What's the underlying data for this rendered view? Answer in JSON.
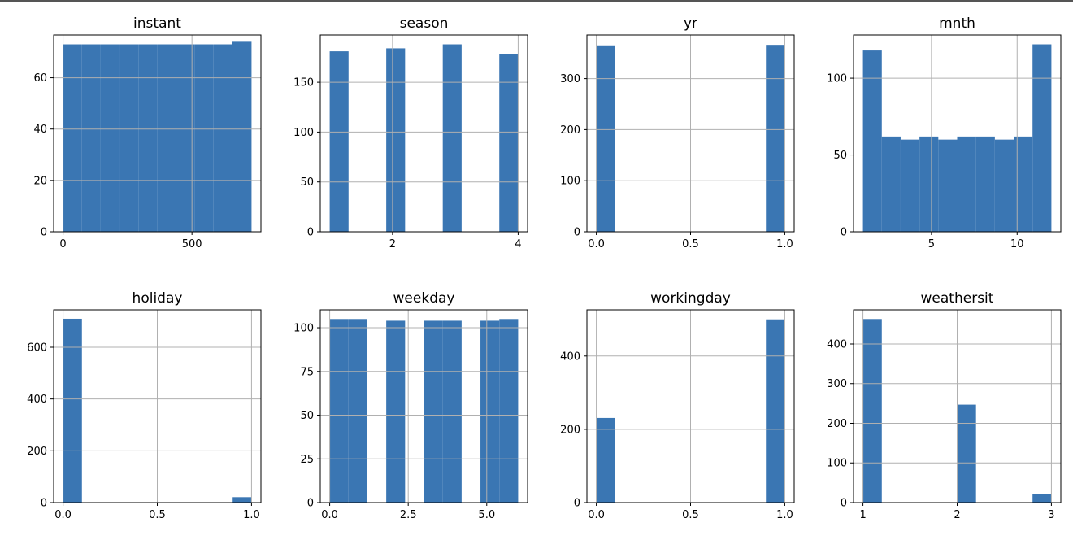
{
  "style": {
    "bar_color": "#3a76b3",
    "grid_color": "#b0b0b0",
    "axis_color": "#000000"
  },
  "chart_data": [
    {
      "type": "bar",
      "title": "instant",
      "xlim": [
        -36.5,
        767.5
      ],
      "ylim": [
        0,
        76.65
      ],
      "xticks": [
        0,
        500
      ],
      "yticks": [
        0,
        20,
        40,
        60
      ],
      "grid": true,
      "bins": [
        {
          "x0": 1,
          "x1": 73,
          "value": 73
        },
        {
          "x0": 73,
          "x1": 146,
          "value": 73
        },
        {
          "x0": 146,
          "x1": 219,
          "value": 73
        },
        {
          "x0": 219,
          "x1": 292,
          "value": 73
        },
        {
          "x0": 292,
          "x1": 365,
          "value": 73
        },
        {
          "x0": 365,
          "x1": 438,
          "value": 73
        },
        {
          "x0": 438,
          "x1": 511,
          "value": 73
        },
        {
          "x0": 511,
          "x1": 584,
          "value": 73
        },
        {
          "x0": 584,
          "x1": 657,
          "value": 73
        },
        {
          "x0": 657,
          "x1": 731,
          "value": 74
        }
      ]
    },
    {
      "type": "bar",
      "title": "season",
      "xlim": [
        0.85,
        4.15
      ],
      "ylim": [
        0,
        197.4
      ],
      "xticks": [
        2,
        4
      ],
      "yticks": [
        0,
        50,
        100,
        150
      ],
      "grid": true,
      "bins": [
        {
          "x0": 1.0,
          "x1": 1.3,
          "value": 181
        },
        {
          "x0": 1.3,
          "x1": 1.6,
          "value": 0
        },
        {
          "x0": 1.6,
          "x1": 1.9,
          "value": 0
        },
        {
          "x0": 1.9,
          "x1": 2.2,
          "value": 184
        },
        {
          "x0": 2.2,
          "x1": 2.5,
          "value": 0
        },
        {
          "x0": 2.5,
          "x1": 2.8,
          "value": 0
        },
        {
          "x0": 2.8,
          "x1": 3.1,
          "value": 188
        },
        {
          "x0": 3.1,
          "x1": 3.4,
          "value": 0
        },
        {
          "x0": 3.4,
          "x1": 3.7,
          "value": 0
        },
        {
          "x0": 3.7,
          "x1": 4.0,
          "value": 178
        }
      ]
    },
    {
      "type": "bar",
      "title": "yr",
      "xlim": [
        -0.05,
        1.05
      ],
      "ylim": [
        0,
        385.35
      ],
      "xticks": [
        0.0,
        0.5,
        1.0
      ],
      "yticks": [
        0,
        100,
        200,
        300
      ],
      "grid": true,
      "bins": [
        {
          "x0": 0.0,
          "x1": 0.1,
          "value": 365
        },
        {
          "x0": 0.1,
          "x1": 0.2,
          "value": 0
        },
        {
          "x0": 0.2,
          "x1": 0.3,
          "value": 0
        },
        {
          "x0": 0.3,
          "x1": 0.4,
          "value": 0
        },
        {
          "x0": 0.4,
          "x1": 0.5,
          "value": 0
        },
        {
          "x0": 0.5,
          "x1": 0.6,
          "value": 0
        },
        {
          "x0": 0.6,
          "x1": 0.7,
          "value": 0
        },
        {
          "x0": 0.7,
          "x1": 0.8,
          "value": 0
        },
        {
          "x0": 0.8,
          "x1": 0.9,
          "value": 0
        },
        {
          "x0": 0.9,
          "x1": 1.0,
          "value": 366
        }
      ]
    },
    {
      "type": "bar",
      "title": "mnth",
      "xlim": [
        0.45,
        12.55
      ],
      "ylim": [
        0,
        128.1
      ],
      "xticks": [
        5,
        10
      ],
      "yticks": [
        0,
        50,
        100
      ],
      "grid": true,
      "bins": [
        {
          "x0": 1.0,
          "x1": 2.1,
          "value": 118
        },
        {
          "x0": 2.1,
          "x1": 3.2,
          "value": 62
        },
        {
          "x0": 3.2,
          "x1": 4.3,
          "value": 60
        },
        {
          "x0": 4.3,
          "x1": 5.4,
          "value": 62
        },
        {
          "x0": 5.4,
          "x1": 6.5,
          "value": 60
        },
        {
          "x0": 6.5,
          "x1": 7.6,
          "value": 62
        },
        {
          "x0": 7.6,
          "x1": 8.7,
          "value": 62
        },
        {
          "x0": 8.7,
          "x1": 9.8,
          "value": 60
        },
        {
          "x0": 9.8,
          "x1": 10.9,
          "value": 62
        },
        {
          "x0": 10.9,
          "x1": 12.0,
          "value": 122
        }
      ]
    },
    {
      "type": "bar",
      "title": "holiday",
      "xlim": [
        -0.05,
        1.05
      ],
      "ylim": [
        0,
        744.45
      ],
      "xticks": [
        0.0,
        0.5,
        1.0
      ],
      "yticks": [
        0,
        200,
        400,
        600
      ],
      "grid": true,
      "bins": [
        {
          "x0": 0.0,
          "x1": 0.1,
          "value": 710
        },
        {
          "x0": 0.1,
          "x1": 0.2,
          "value": 0
        },
        {
          "x0": 0.2,
          "x1": 0.3,
          "value": 0
        },
        {
          "x0": 0.3,
          "x1": 0.4,
          "value": 0
        },
        {
          "x0": 0.4,
          "x1": 0.5,
          "value": 0
        },
        {
          "x0": 0.5,
          "x1": 0.6,
          "value": 0
        },
        {
          "x0": 0.6,
          "x1": 0.7,
          "value": 0
        },
        {
          "x0": 0.7,
          "x1": 0.8,
          "value": 0
        },
        {
          "x0": 0.8,
          "x1": 0.9,
          "value": 0
        },
        {
          "x0": 0.9,
          "x1": 1.0,
          "value": 21
        }
      ]
    },
    {
      "type": "bar",
      "title": "weekday",
      "xlim": [
        -0.3,
        6.3
      ],
      "ylim": [
        0,
        110.25
      ],
      "xticks": [
        0.0,
        2.5,
        5.0
      ],
      "yticks": [
        0,
        25,
        50,
        75,
        100
      ],
      "grid": true,
      "bins": [
        {
          "x0": 0.0,
          "x1": 0.6,
          "value": 105
        },
        {
          "x0": 0.6,
          "x1": 1.2,
          "value": 105
        },
        {
          "x0": 1.2,
          "x1": 1.8,
          "value": 0
        },
        {
          "x0": 1.8,
          "x1": 2.4,
          "value": 104
        },
        {
          "x0": 2.4,
          "x1": 3.0,
          "value": 0
        },
        {
          "x0": 3.0,
          "x1": 3.6,
          "value": 104
        },
        {
          "x0": 3.6,
          "x1": 4.2,
          "value": 104
        },
        {
          "x0": 4.2,
          "x1": 4.8,
          "value": 0
        },
        {
          "x0": 4.8,
          "x1": 5.4,
          "value": 104
        },
        {
          "x0": 5.4,
          "x1": 6.0,
          "value": 105
        }
      ]
    },
    {
      "type": "bar",
      "title": "workingday",
      "xlim": [
        -0.05,
        1.05
      ],
      "ylim": [
        0,
        526.05
      ],
      "xticks": [
        0.0,
        0.5,
        1.0
      ],
      "yticks": [
        0,
        200,
        400
      ],
      "grid": true,
      "bins": [
        {
          "x0": 0.0,
          "x1": 0.1,
          "value": 231
        },
        {
          "x0": 0.1,
          "x1": 0.2,
          "value": 0
        },
        {
          "x0": 0.2,
          "x1": 0.3,
          "value": 0
        },
        {
          "x0": 0.3,
          "x1": 0.4,
          "value": 0
        },
        {
          "x0": 0.4,
          "x1": 0.5,
          "value": 0
        },
        {
          "x0": 0.5,
          "x1": 0.6,
          "value": 0
        },
        {
          "x0": 0.6,
          "x1": 0.7,
          "value": 0
        },
        {
          "x0": 0.7,
          "x1": 0.8,
          "value": 0
        },
        {
          "x0": 0.8,
          "x1": 0.9,
          "value": 0
        },
        {
          "x0": 0.9,
          "x1": 1.0,
          "value": 500
        }
      ]
    },
    {
      "type": "bar",
      "title": "weathersit",
      "xlim": [
        0.9,
        3.1
      ],
      "ylim": [
        0,
        486.15
      ],
      "xticks": [
        1,
        2,
        3
      ],
      "yticks": [
        0,
        100,
        200,
        300,
        400
      ],
      "grid": true,
      "bins": [
        {
          "x0": 1.0,
          "x1": 1.2,
          "value": 463
        },
        {
          "x0": 1.2,
          "x1": 1.4,
          "value": 0
        },
        {
          "x0": 1.4,
          "x1": 1.6,
          "value": 0
        },
        {
          "x0": 1.6,
          "x1": 1.8,
          "value": 0
        },
        {
          "x0": 1.8,
          "x1": 2.0,
          "value": 0
        },
        {
          "x0": 2.0,
          "x1": 2.2,
          "value": 247
        },
        {
          "x0": 2.2,
          "x1": 2.4,
          "value": 0
        },
        {
          "x0": 2.4,
          "x1": 2.6,
          "value": 0
        },
        {
          "x0": 2.6,
          "x1": 2.8,
          "value": 0
        },
        {
          "x0": 2.8,
          "x1": 3.0,
          "value": 21
        }
      ]
    }
  ]
}
